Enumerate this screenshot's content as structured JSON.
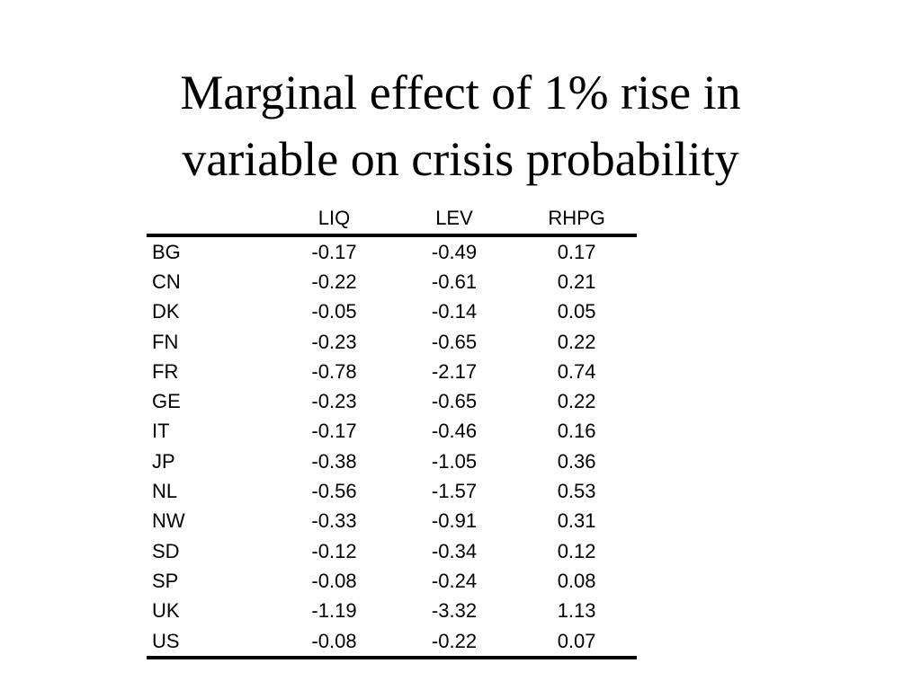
{
  "title": {
    "line1": "Marginal effect of 1% rise in",
    "line2": "variable on crisis probability"
  },
  "table": {
    "headers": [
      "",
      "LIQ",
      "LEV",
      "RHPG"
    ],
    "rows": [
      {
        "country": "BG",
        "liq": "-0.17",
        "lev": "-0.49",
        "rhpg": "0.17"
      },
      {
        "country": "CN",
        "liq": "-0.22",
        "lev": "-0.61",
        "rhpg": "0.21"
      },
      {
        "country": "DK",
        "liq": "-0.05",
        "lev": "-0.14",
        "rhpg": "0.05"
      },
      {
        "country": "FN",
        "liq": "-0.23",
        "lev": "-0.65",
        "rhpg": "0.22"
      },
      {
        "country": "FR",
        "liq": "-0.78",
        "lev": "-2.17",
        "rhpg": "0.74"
      },
      {
        "country": "GE",
        "liq": "-0.23",
        "lev": "-0.65",
        "rhpg": "0.22"
      },
      {
        "country": "IT",
        "liq": "-0.17",
        "lev": "-0.46",
        "rhpg": "0.16"
      },
      {
        "country": "JP",
        "liq": "-0.38",
        "lev": "-1.05",
        "rhpg": "0.36"
      },
      {
        "country": "NL",
        "liq": "-0.56",
        "lev": "-1.57",
        "rhpg": "0.53"
      },
      {
        "country": "NW",
        "liq": "-0.33",
        "lev": "-0.91",
        "rhpg": "0.31"
      },
      {
        "country": "SD",
        "liq": "-0.12",
        "lev": "-0.34",
        "rhpg": "0.12"
      },
      {
        "country": "SP",
        "liq": "-0.08",
        "lev": "-0.24",
        "rhpg": "0.08"
      },
      {
        "country": "UK",
        "liq": "-1.19",
        "lev": "-3.32",
        "rhpg": "1.13"
      },
      {
        "country": "US",
        "liq": "-0.08",
        "lev": "-0.22",
        "rhpg": "0.07"
      }
    ]
  }
}
